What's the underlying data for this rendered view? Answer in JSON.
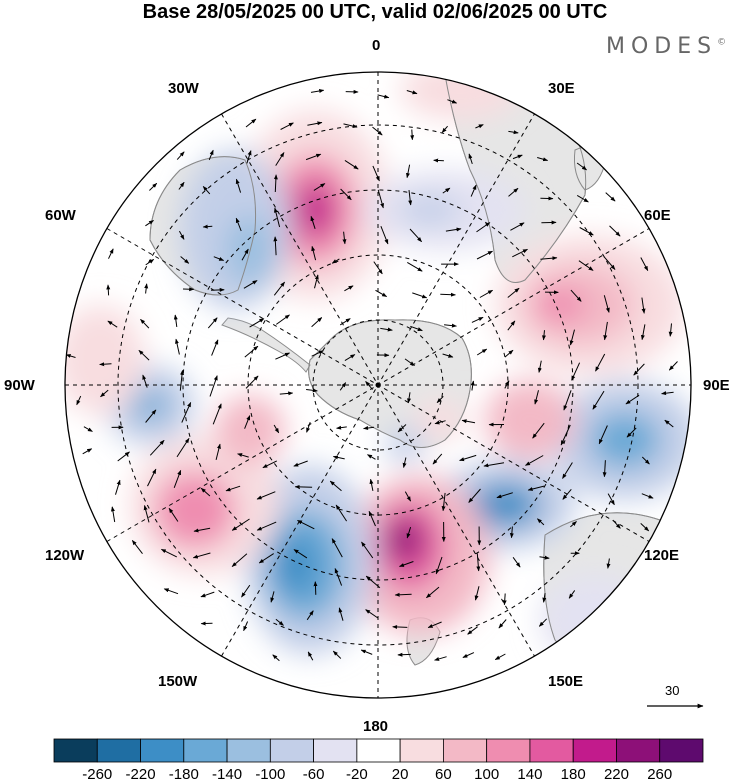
{
  "title": "Base 28/05/2025 00 UTC, valid 02/06/2025 00 UTC",
  "brand": "MODES",
  "brand_mark": "©",
  "longitude_labels": {
    "n": "0",
    "ne1": "30E",
    "ne2": "60E",
    "e": "90E",
    "se2": "120E",
    "se1": "150E",
    "s": "180",
    "sw1": "150W",
    "sw2": "120W",
    "w": "90W",
    "nw2": "60W",
    "nw1": "30W"
  },
  "colorbar": {
    "colors": [
      "#0a3d5c",
      "#1f6ea3",
      "#3d8ec6",
      "#6aa9d6",
      "#9bbfe0",
      "#c3cfe8",
      "#e3e2f2",
      "#ffffff",
      "#f8dde0",
      "#f3b9c6",
      "#ef8db0",
      "#e35aa0",
      "#c21b8c",
      "#8d1078",
      "#5e0a6e"
    ],
    "tick_labels": [
      "-260",
      "-220",
      "-180",
      "-140",
      "-100",
      "-60",
      "-20",
      "20",
      "60",
      "100",
      "140",
      "180",
      "220",
      "260"
    ]
  },
  "reference_vector_label": "30",
  "colors": {
    "land": "#e6e6e6",
    "coast": "#8a8a8a",
    "grid": "#000000"
  }
}
